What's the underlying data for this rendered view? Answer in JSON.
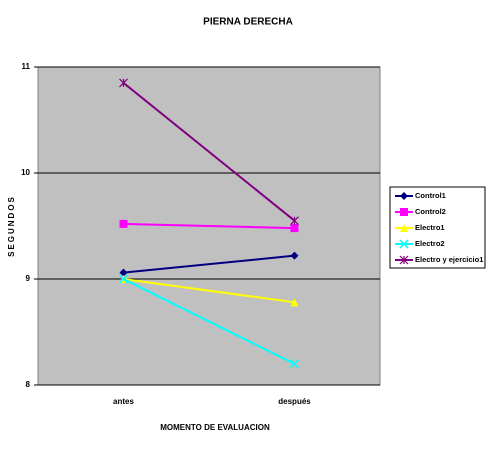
{
  "chart_data": {
    "type": "line",
    "title": "PIERNA DERECHA",
    "x_label": "MOMENTO DE EVALUACION",
    "y_label": "SEGUNDOS",
    "categories": [
      "antes",
      "después"
    ],
    "series": [
      {
        "name": "Control1",
        "color": "#000080",
        "marker": "diamond",
        "values": [
          9.06,
          9.22
        ]
      },
      {
        "name": "Control2",
        "color": "#ff00ff",
        "marker": "square",
        "values": [
          9.52,
          9.48
        ]
      },
      {
        "name": "Electro1",
        "color": "#ffff00",
        "marker": "triangle",
        "values": [
          9.0,
          8.78
        ]
      },
      {
        "name": "Electro2",
        "color": "#00ffff",
        "marker": "x",
        "values": [
          9.0,
          8.2
        ]
      },
      {
        "name": "Electro y ejercicio1",
        "color": "#800080",
        "marker": "star",
        "values": [
          10.85,
          9.55
        ]
      }
    ],
    "ylim": [
      8,
      11
    ],
    "yticks": [
      8,
      9,
      10,
      11
    ],
    "grid": true,
    "legend": "right"
  }
}
